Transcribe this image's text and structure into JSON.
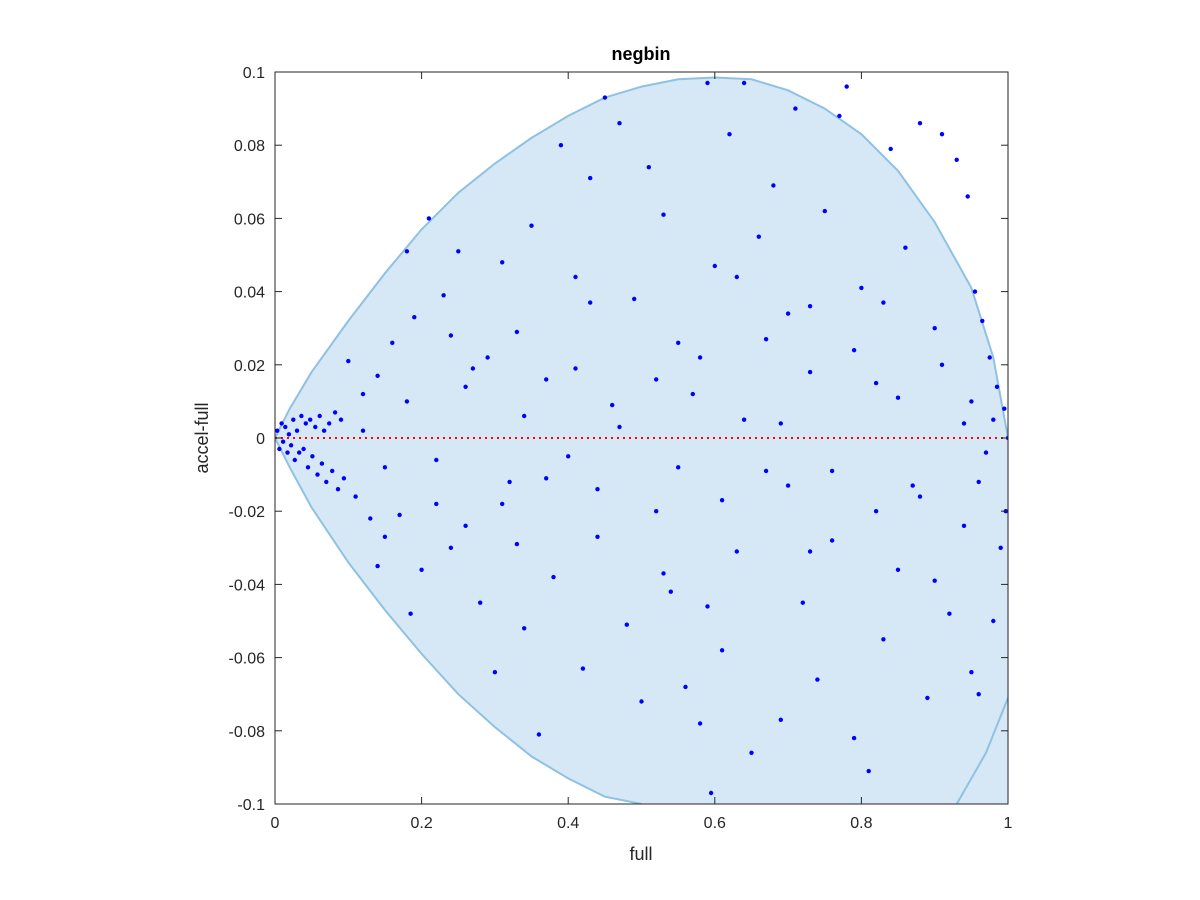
{
  "chart_data": {
    "type": "scatter",
    "title": "negbin",
    "xlabel": "full",
    "ylabel": "accel-full",
    "xlim": [
      0,
      1
    ],
    "ylim": [
      -0.1,
      0.1
    ],
    "xticks": [
      0,
      0.2,
      0.4,
      0.6,
      0.8,
      1
    ],
    "xtick_labels": [
      "0",
      "0.2",
      "0.4",
      "0.6",
      "0.8",
      "1"
    ],
    "yticks": [
      -0.1,
      -0.08,
      -0.06,
      -0.04,
      -0.02,
      0,
      0.02,
      0.04,
      0.06,
      0.08,
      0.1
    ],
    "ytick_labels": [
      "-0.1",
      "-0.08",
      "-0.06",
      "-0.04",
      "-0.02",
      "0",
      "0.02",
      "0.04",
      "0.06",
      "0.08",
      "0.1"
    ],
    "grid": false,
    "colors": {
      "points": "#0000ff",
      "band_fill": "#d6e8f5",
      "band_edge": "#8fc1e3",
      "zero_line": "#ff0000",
      "axes": "#262626"
    },
    "reference_line": {
      "y": 0,
      "style": "dotted"
    },
    "band": {
      "upper": [
        [
          0,
          0
        ],
        [
          0.02,
          0.008
        ],
        [
          0.05,
          0.018
        ],
        [
          0.1,
          0.032
        ],
        [
          0.15,
          0.045
        ],
        [
          0.2,
          0.057
        ],
        [
          0.25,
          0.067
        ],
        [
          0.3,
          0.075
        ],
        [
          0.35,
          0.082
        ],
        [
          0.4,
          0.088
        ],
        [
          0.45,
          0.093
        ],
        [
          0.5,
          0.096
        ],
        [
          0.55,
          0.098
        ],
        [
          0.6,
          0.0985
        ],
        [
          0.65,
          0.098
        ],
        [
          0.7,
          0.095
        ],
        [
          0.75,
          0.09
        ],
        [
          0.8,
          0.083
        ],
        [
          0.85,
          0.073
        ],
        [
          0.9,
          0.059
        ],
        [
          0.95,
          0.041
        ],
        [
          0.98,
          0.022
        ],
        [
          1,
          0
        ]
      ],
      "lower": [
        [
          0,
          0
        ],
        [
          0.02,
          -0.008
        ],
        [
          0.05,
          -0.019
        ],
        [
          0.1,
          -0.034
        ],
        [
          0.15,
          -0.047
        ],
        [
          0.2,
          -0.059
        ],
        [
          0.25,
          -0.07
        ],
        [
          0.3,
          -0.079
        ],
        [
          0.35,
          -0.087
        ],
        [
          0.4,
          -0.093
        ],
        [
          0.45,
          -0.098
        ],
        [
          0.5,
          -0.1
        ]
      ],
      "lower_right": [
        [
          0.93,
          -0.1
        ],
        [
          0.95,
          -0.093
        ],
        [
          0.97,
          -0.086
        ],
        [
          1,
          -0.071
        ]
      ]
    },
    "points": [
      [
        0.003,
        0.002
      ],
      [
        0.006,
        -0.003
      ],
      [
        0.009,
        0.004
      ],
      [
        0.011,
        -0.001
      ],
      [
        0.014,
        0.003
      ],
      [
        0.017,
        -0.004
      ],
      [
        0.019,
        0.001
      ],
      [
        0.022,
        -0.002
      ],
      [
        0.025,
        0.005
      ],
      [
        0.027,
        -0.006
      ],
      [
        0.03,
        0.002
      ],
      [
        0.033,
        -0.004
      ],
      [
        0.036,
        0.006
      ],
      [
        0.039,
        -0.003
      ],
      [
        0.042,
        0.004
      ],
      [
        0.045,
        -0.008
      ],
      [
        0.048,
        0.005
      ],
      [
        0.051,
        -0.005
      ],
      [
        0.055,
        0.003
      ],
      [
        0.058,
        -0.01
      ],
      [
        0.061,
        0.006
      ],
      [
        0.064,
        -0.007
      ],
      [
        0.067,
        0.002
      ],
      [
        0.07,
        -0.012
      ],
      [
        0.074,
        0.004
      ],
      [
        0.078,
        -0.009
      ],
      [
        0.082,
        0.007
      ],
      [
        0.086,
        -0.014
      ],
      [
        0.09,
        0.005
      ],
      [
        0.094,
        -0.011
      ],
      [
        0.1,
        0.021
      ],
      [
        0.11,
        -0.016
      ],
      [
        0.12,
        0.012
      ],
      [
        0.13,
        -0.022
      ],
      [
        0.14,
        0.017
      ],
      [
        0.15,
        -0.027
      ],
      [
        0.16,
        0.026
      ],
      [
        0.17,
        -0.021
      ],
      [
        0.18,
        0.051
      ],
      [
        0.185,
        -0.048
      ],
      [
        0.19,
        0.033
      ],
      [
        0.2,
        -0.036
      ],
      [
        0.21,
        0.06
      ],
      [
        0.22,
        -0.018
      ],
      [
        0.23,
        0.039
      ],
      [
        0.24,
        -0.03
      ],
      [
        0.25,
        0.051
      ],
      [
        0.26,
        -0.024
      ],
      [
        0.27,
        0.019
      ],
      [
        0.28,
        -0.045
      ],
      [
        0.29,
        0.022
      ],
      [
        0.3,
        -0.064
      ],
      [
        0.31,
        0.048
      ],
      [
        0.32,
        -0.012
      ],
      [
        0.33,
        0.029
      ],
      [
        0.34,
        -0.052
      ],
      [
        0.35,
        0.058
      ],
      [
        0.36,
        -0.081
      ],
      [
        0.37,
        0.016
      ],
      [
        0.38,
        -0.038
      ],
      [
        0.39,
        0.08
      ],
      [
        0.4,
        -0.005
      ],
      [
        0.41,
        0.044
      ],
      [
        0.42,
        -0.063
      ],
      [
        0.43,
        0.071
      ],
      [
        0.44,
        -0.027
      ],
      [
        0.45,
        0.093
      ],
      [
        0.46,
        0.009
      ],
      [
        0.47,
        0.086
      ],
      [
        0.48,
        -0.051
      ],
      [
        0.49,
        0.038
      ],
      [
        0.5,
        -0.072
      ],
      [
        0.51,
        0.074
      ],
      [
        0.52,
        -0.02
      ],
      [
        0.53,
        0.061
      ],
      [
        0.54,
        -0.042
      ],
      [
        0.55,
        0.026
      ],
      [
        0.56,
        -0.068
      ],
      [
        0.57,
        0.012
      ],
      [
        0.58,
        -0.078
      ],
      [
        0.59,
        0.097
      ],
      [
        0.595,
        -0.097
      ],
      [
        0.6,
        0.047
      ],
      [
        0.61,
        -0.058
      ],
      [
        0.62,
        0.083
      ],
      [
        0.63,
        -0.031
      ],
      [
        0.64,
        0.097
      ],
      [
        0.65,
        -0.086
      ],
      [
        0.66,
        0.055
      ],
      [
        0.67,
        -0.009
      ],
      [
        0.68,
        0.069
      ],
      [
        0.69,
        -0.077
      ],
      [
        0.7,
        0.034
      ],
      [
        0.71,
        0.09
      ],
      [
        0.72,
        -0.045
      ],
      [
        0.73,
        0.018
      ],
      [
        0.74,
        -0.066
      ],
      [
        0.75,
        0.062
      ],
      [
        0.76,
        -0.028
      ],
      [
        0.77,
        0.088
      ],
      [
        0.78,
        0.096
      ],
      [
        0.79,
        -0.082
      ],
      [
        0.8,
        0.041
      ],
      [
        0.81,
        -0.091
      ],
      [
        0.82,
        0.015
      ],
      [
        0.83,
        -0.055
      ],
      [
        0.84,
        0.079
      ],
      [
        0.85,
        -0.036
      ],
      [
        0.86,
        0.052
      ],
      [
        0.87,
        -0.013
      ],
      [
        0.88,
        0.086
      ],
      [
        0.89,
        -0.071
      ],
      [
        0.9,
        0.03
      ],
      [
        0.91,
        0.083
      ],
      [
        0.92,
        -0.048
      ],
      [
        0.93,
        0.076
      ],
      [
        0.94,
        -0.024
      ],
      [
        0.945,
        0.066
      ],
      [
        0.95,
        -0.064
      ],
      [
        0.955,
        0.04
      ],
      [
        0.96,
        -0.07
      ],
      [
        0.965,
        0.032
      ],
      [
        0.97,
        -0.004
      ],
      [
        0.975,
        0.022
      ],
      [
        0.98,
        -0.05
      ],
      [
        0.985,
        0.014
      ],
      [
        0.99,
        -0.03
      ],
      [
        0.995,
        0.008
      ],
      [
        1,
        0
      ],
      [
        0.997,
        -0.02
      ],
      [
        0.12,
        0.002
      ],
      [
        0.15,
        -0.008
      ],
      [
        0.18,
        0.01
      ],
      [
        0.22,
        -0.006
      ],
      [
        0.26,
        0.014
      ],
      [
        0.31,
        -0.018
      ],
      [
        0.34,
        0.006
      ],
      [
        0.37,
        -0.011
      ],
      [
        0.41,
        0.019
      ],
      [
        0.44,
        -0.014
      ],
      [
        0.47,
        0.003
      ],
      [
        0.52,
        0.016
      ],
      [
        0.55,
        -0.008
      ],
      [
        0.58,
        0.022
      ],
      [
        0.61,
        -0.017
      ],
      [
        0.64,
        0.005
      ],
      [
        0.67,
        0.027
      ],
      [
        0.7,
        -0.013
      ],
      [
        0.73,
        0.036
      ],
      [
        0.76,
        -0.009
      ],
      [
        0.79,
        0.024
      ],
      [
        0.82,
        -0.02
      ],
      [
        0.85,
        0.011
      ],
      [
        0.88,
        -0.016
      ],
      [
        0.91,
        0.02
      ],
      [
        0.94,
        0.004
      ],
      [
        0.96,
        -0.012
      ],
      [
        0.98,
        0.005
      ],
      [
        0.14,
        -0.035
      ],
      [
        0.24,
        0.028
      ],
      [
        0.33,
        -0.029
      ],
      [
        0.43,
        0.037
      ],
      [
        0.53,
        -0.037
      ],
      [
        0.63,
        0.044
      ],
      [
        0.73,
        -0.031
      ],
      [
        0.83,
        0.037
      ],
      [
        0.9,
        -0.039
      ],
      [
        0.95,
        0.01
      ],
      [
        0.69,
        0.004
      ],
      [
        0.59,
        -0.046
      ]
    ]
  }
}
